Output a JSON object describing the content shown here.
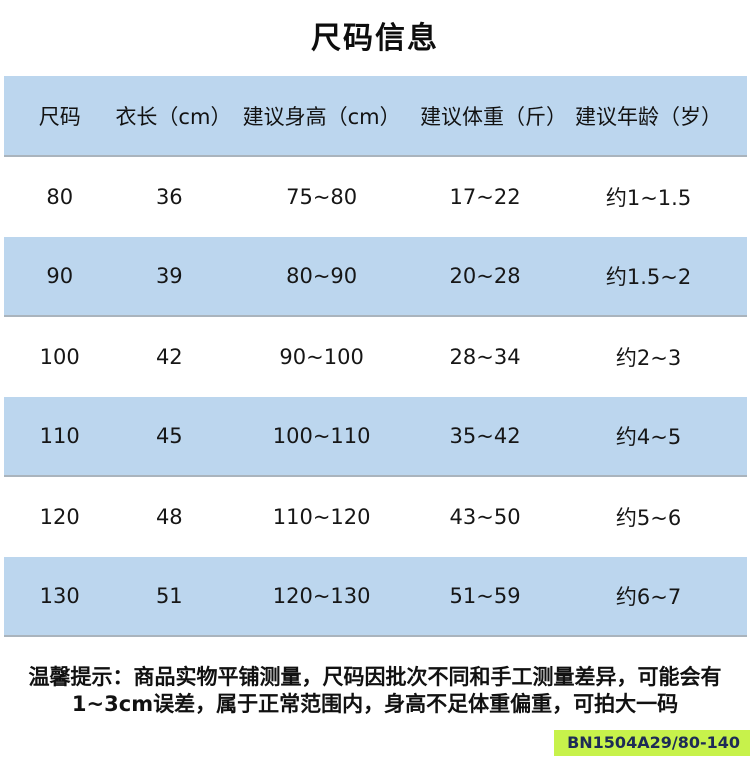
{
  "page": {
    "title": "尺码信息"
  },
  "table": {
    "stripe_color": "#bcd6ee",
    "headers": [
      "尺码",
      "衣长（cm）",
      "建议身高（cm）",
      "建议体重（斤）",
      "建议年龄（岁）"
    ],
    "rows": [
      [
        "80",
        "36",
        "75~80",
        "17~22",
        "约1~1.5"
      ],
      [
        "90",
        "39",
        "80~90",
        "20~28",
        "约1.5~2"
      ],
      [
        "100",
        "42",
        "90~100",
        "28~34",
        "约2~3"
      ],
      [
        "110",
        "45",
        "100~110",
        "35~42",
        "约4~5"
      ],
      [
        "120",
        "48",
        "110~120",
        "43~50",
        "约5~6"
      ],
      [
        "130",
        "51",
        "120~130",
        "51~59",
        "约6~7"
      ]
    ]
  },
  "footer": {
    "note_line1": "温馨提示：商品实物平铺测量，尺码因批次不同和手工测量差异，可能会有",
    "note_line2": "1~3cm误差，属于正常范围内，身高不足体重偏重，可拍大一码",
    "badge": {
      "text": "BN1504A29/80-140",
      "bg_color": "#c7f24b",
      "text_color": "#1d2b56"
    }
  }
}
